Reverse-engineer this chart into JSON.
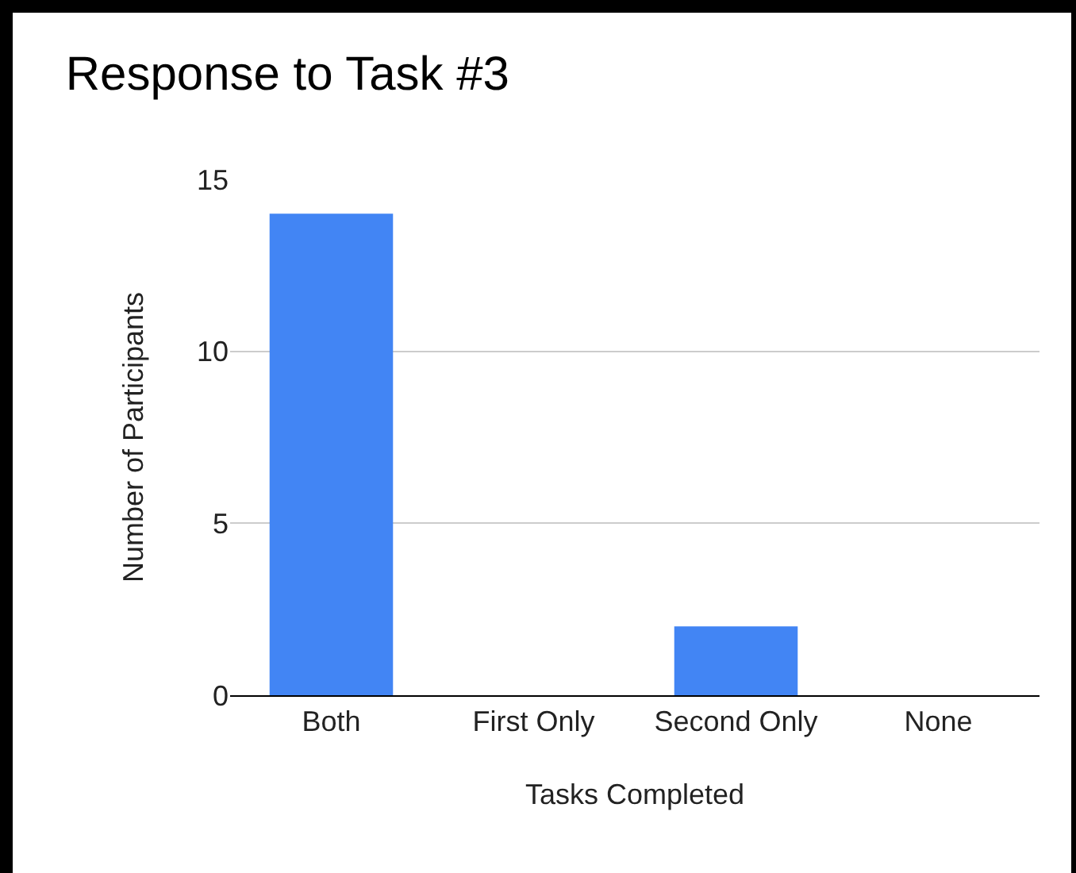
{
  "chart_data": {
    "type": "bar",
    "title": "Response to Task #3",
    "xlabel": "Tasks Completed",
    "ylabel": "Number of Participants",
    "categories": [
      "Both",
      "First Only",
      "Second Only",
      "None"
    ],
    "values": [
      14,
      0,
      2,
      0
    ],
    "color": "#4285f4",
    "ylim": [
      0,
      15
    ],
    "yticks": [
      0,
      5,
      10,
      15
    ],
    "grid": "y",
    "legend": false
  }
}
